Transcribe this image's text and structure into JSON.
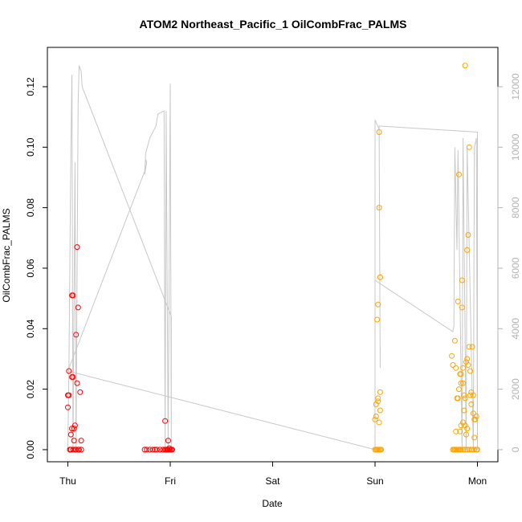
{
  "chart_data": {
    "type": "scatter",
    "title": "ATOM2 Northeast_Pacific_1 OilCombFrac_PALMS",
    "xlabel": "Date",
    "ylabel": "OilCombFrac_PALMS",
    "x_unit": "days after the first (Thu) tick",
    "x_ticks": [
      {
        "label": "Thu",
        "value": 0
      },
      {
        "label": "Fri",
        "value": 1
      },
      {
        "label": "Sat",
        "value": 2
      },
      {
        "label": "Sun",
        "value": 3
      },
      {
        "label": "Mon",
        "value": 4
      }
    ],
    "xlim": [
      -0.2,
      4.2
    ],
    "ylim": [
      -0.004,
      0.133
    ],
    "y_ticks": [
      "0.00",
      "0.02",
      "0.04",
      "0.06",
      "0.08",
      "0.10",
      "0.12"
    ],
    "y_tick_values": [
      0,
      0.02,
      0.04,
      0.06,
      0.08,
      0.1,
      0.12
    ],
    "y2lim": [
      -400,
      13300
    ],
    "y2_ticks": [
      "0",
      "2000",
      "4000",
      "6000",
      "8000",
      "10000",
      "12000"
    ],
    "y2_tick_values": [
      0,
      2000,
      4000,
      6000,
      8000,
      10000,
      12000
    ],
    "grid": false,
    "legend": "none",
    "series": [
      {
        "color": "#ff0000",
        "marker": "open-circle",
        "points": [
          [
            0.0,
            0.018
          ],
          [
            0.0,
            0.014
          ],
          [
            0.01,
            0.026
          ],
          [
            0.01,
            0.018
          ],
          [
            0.02,
            0.0
          ],
          [
            0.03,
            0.005
          ],
          [
            0.04,
            0.051
          ],
          [
            0.04,
            0.024
          ],
          [
            0.04,
            0.007
          ],
          [
            0.05,
            0.051
          ],
          [
            0.05,
            0.024
          ],
          [
            0.06,
            0.007
          ],
          [
            0.06,
            0.003
          ],
          [
            0.07,
            0.0
          ],
          [
            0.07,
            0.008
          ],
          [
            0.08,
            0.038
          ],
          [
            0.09,
            0.022
          ],
          [
            0.09,
            0.067
          ],
          [
            0.1,
            0.047
          ],
          [
            0.12,
            0.019
          ],
          [
            0.13,
            0.003
          ],
          [
            0.02,
            0.0
          ],
          [
            0.03,
            0.0
          ],
          [
            0.05,
            0.0
          ],
          [
            0.08,
            0.0
          ],
          [
            0.1,
            0.0
          ],
          [
            0.11,
            0.0
          ],
          [
            0.13,
            0.0
          ],
          [
            0.75,
            0.0
          ],
          [
            0.77,
            0.0
          ],
          [
            0.8,
            0.0
          ],
          [
            0.83,
            0.0
          ],
          [
            0.85,
            0.0
          ],
          [
            0.87,
            0.0
          ],
          [
            0.9,
            0.0
          ],
          [
            0.93,
            0.0
          ],
          [
            0.95,
            0.0
          ],
          [
            0.96,
            0.0
          ],
          [
            0.97,
            0.0
          ],
          [
            0.98,
            0.0
          ],
          [
            0.99,
            0.0
          ],
          [
            1.0,
            0.0
          ],
          [
            1.01,
            0.0
          ],
          [
            1.02,
            0.0
          ],
          [
            0.95,
            0.0095
          ],
          [
            0.98,
            0.003
          ],
          [
            0.99,
            0.0005
          ]
        ]
      },
      {
        "color": "#ffa500",
        "marker": "open-circle",
        "points": [
          [
            3.0,
            0.0
          ],
          [
            3.01,
            0.0
          ],
          [
            3.02,
            0.0
          ],
          [
            3.03,
            0.0
          ],
          [
            3.04,
            0.0
          ],
          [
            3.05,
            0.0
          ],
          [
            3.06,
            0.0
          ],
          [
            3.0,
            0.01
          ],
          [
            3.01,
            0.015
          ],
          [
            3.01,
            0.011
          ],
          [
            3.02,
            0.043
          ],
          [
            3.03,
            0.048
          ],
          [
            3.03,
            0.016
          ],
          [
            3.03,
            0.017
          ],
          [
            3.04,
            0.105
          ],
          [
            3.04,
            0.08
          ],
          [
            3.05,
            0.057
          ],
          [
            3.05,
            0.057
          ],
          [
            3.05,
            0.019
          ],
          [
            3.05,
            0.013
          ],
          [
            3.04,
            0.009
          ],
          [
            3.75,
            0.031
          ],
          [
            3.76,
            0.0
          ],
          [
            3.77,
            0.0
          ],
          [
            3.78,
            0.0
          ],
          [
            3.79,
            0.0
          ],
          [
            3.8,
            0.0
          ],
          [
            3.81,
            0.0
          ],
          [
            3.82,
            0.0
          ],
          [
            3.83,
            0.0
          ],
          [
            3.84,
            0.0
          ],
          [
            3.86,
            0.0
          ],
          [
            3.88,
            0.0
          ],
          [
            3.9,
            0.0
          ],
          [
            3.92,
            0.0
          ],
          [
            3.94,
            0.0
          ],
          [
            3.95,
            0.0
          ],
          [
            3.97,
            0.0
          ],
          [
            3.99,
            0.0
          ],
          [
            4.0,
            0.0
          ],
          [
            3.76,
            0.028
          ],
          [
            3.78,
            0.036
          ],
          [
            3.79,
            0.027
          ],
          [
            3.8,
            0.017
          ],
          [
            3.81,
            0.049
          ],
          [
            3.82,
            0.02
          ],
          [
            3.82,
            0.091
          ],
          [
            3.83,
            0.025
          ],
          [
            3.84,
            0.025
          ],
          [
            3.85,
            0.047
          ],
          [
            3.85,
            0.056
          ],
          [
            3.86,
            0.027
          ],
          [
            3.86,
            0.022
          ],
          [
            3.87,
            0.013
          ],
          [
            3.88,
            0.127
          ],
          [
            3.88,
            0.017
          ],
          [
            3.89,
            0.029
          ],
          [
            3.9,
            0.066
          ],
          [
            3.9,
            0.03
          ],
          [
            3.91,
            0.071
          ],
          [
            3.92,
            0.1
          ],
          [
            3.92,
            0.034
          ],
          [
            3.93,
            0.026
          ],
          [
            3.94,
            0.015
          ],
          [
            3.95,
            0.034
          ],
          [
            3.96,
            0.012
          ],
          [
            3.97,
            0.01
          ],
          [
            3.98,
            0.01
          ],
          [
            3.99,
            0.011
          ],
          [
            3.97,
            0.004
          ],
          [
            3.9,
            0.007
          ],
          [
            3.83,
            0.006
          ],
          [
            3.79,
            0.006
          ],
          [
            3.84,
            0.008
          ],
          [
            3.86,
            0.009
          ],
          [
            3.88,
            0.008
          ],
          [
            3.89,
            0.005
          ],
          [
            3.91,
            0.028
          ],
          [
            3.93,
            0.018
          ],
          [
            3.96,
            0.018
          ],
          [
            3.94,
            0.019
          ],
          [
            3.81,
            0.017
          ],
          [
            3.84,
            0.022
          ],
          [
            3.87,
            0.018
          ]
        ]
      },
      {
        "color": "#c8c8c8",
        "marker": "line",
        "axis": "right",
        "points": [
          [
            0.0,
            0
          ],
          [
            0.01,
            2600
          ],
          [
            0.03,
            10000
          ],
          [
            0.04,
            12400
          ],
          [
            0.05,
            0
          ],
          [
            0.07,
            9500
          ],
          [
            0.08,
            0
          ],
          [
            0.1,
            11500
          ],
          [
            0.11,
            12700
          ],
          [
            0.13,
            12500
          ],
          [
            0.14,
            12000
          ],
          [
            1.01,
            4400
          ],
          [
            1.01,
            0
          ],
          [
            1.0,
            12100
          ],
          [
            0.98,
            0
          ],
          [
            0.96,
            11200
          ],
          [
            0.95,
            0
          ],
          [
            0.94,
            11200
          ],
          [
            0.88,
            11100
          ],
          [
            0.86,
            10700
          ],
          [
            0.8,
            10300
          ],
          [
            0.76,
            9800
          ],
          [
            0.75,
            9100
          ],
          [
            0.77,
            9500
          ],
          [
            0.76,
            9600
          ],
          [
            0.75,
            9200
          ],
          [
            0.0,
            2600
          ],
          [
            3.0,
            0
          ],
          [
            3.0,
            10900
          ],
          [
            3.04,
            10600
          ],
          [
            3.05,
            2700
          ],
          [
            3.04,
            10700
          ],
          [
            4.0,
            10500
          ],
          [
            4.0,
            0
          ],
          [
            3.99,
            10300
          ],
          [
            3.97,
            10000
          ],
          [
            3.96,
            0
          ],
          [
            3.9,
            10000
          ],
          [
            3.89,
            0
          ],
          [
            3.86,
            10300
          ],
          [
            3.85,
            0
          ],
          [
            3.81,
            9900
          ],
          [
            3.8,
            6600
          ],
          [
            3.78,
            10000
          ],
          [
            3.77,
            4100
          ],
          [
            3.76,
            3900
          ],
          [
            3.0,
            5600
          ],
          [
            3.0,
            10900
          ]
        ]
      }
    ]
  }
}
